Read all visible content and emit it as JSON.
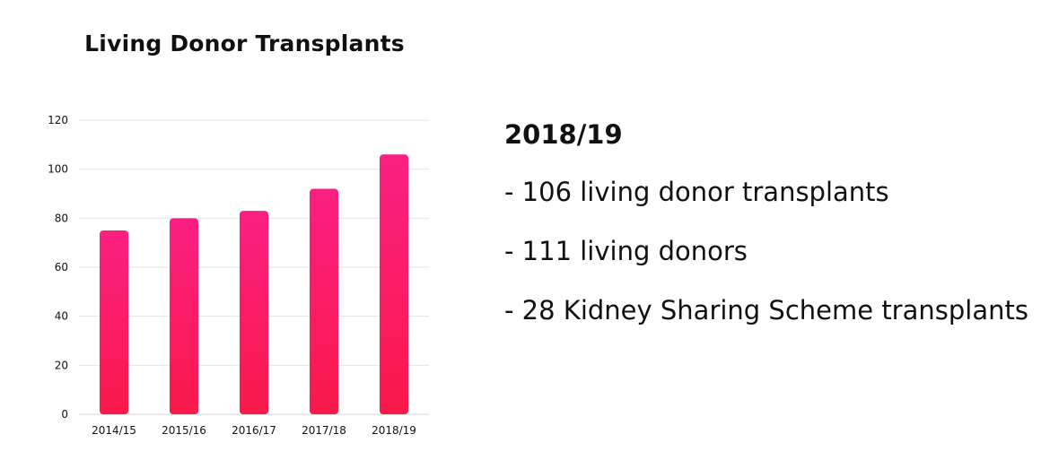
{
  "chart_data": {
    "type": "bar",
    "title": "Living Donor Transplants",
    "categories": [
      "2014/15",
      "2015/16",
      "2016/17",
      "2017/18",
      "2018/19"
    ],
    "values": [
      75,
      80,
      83,
      92,
      106
    ],
    "ylim": [
      0,
      120
    ],
    "yticks": [
      0,
      20,
      40,
      60,
      80,
      100,
      120
    ],
    "grid": true,
    "legend": "none",
    "colors": {
      "bar_top": "#fb1f82",
      "bar_bottom": "#f9194a",
      "grid": "#e5e5e5",
      "axis": "#d6d6d6",
      "text": "#111111"
    }
  },
  "stats": {
    "heading": "2018/19",
    "items": [
      "- 106 living donor transplants",
      "- 111 living donors",
      "- 28 Kidney Sharing Scheme transplants"
    ]
  }
}
